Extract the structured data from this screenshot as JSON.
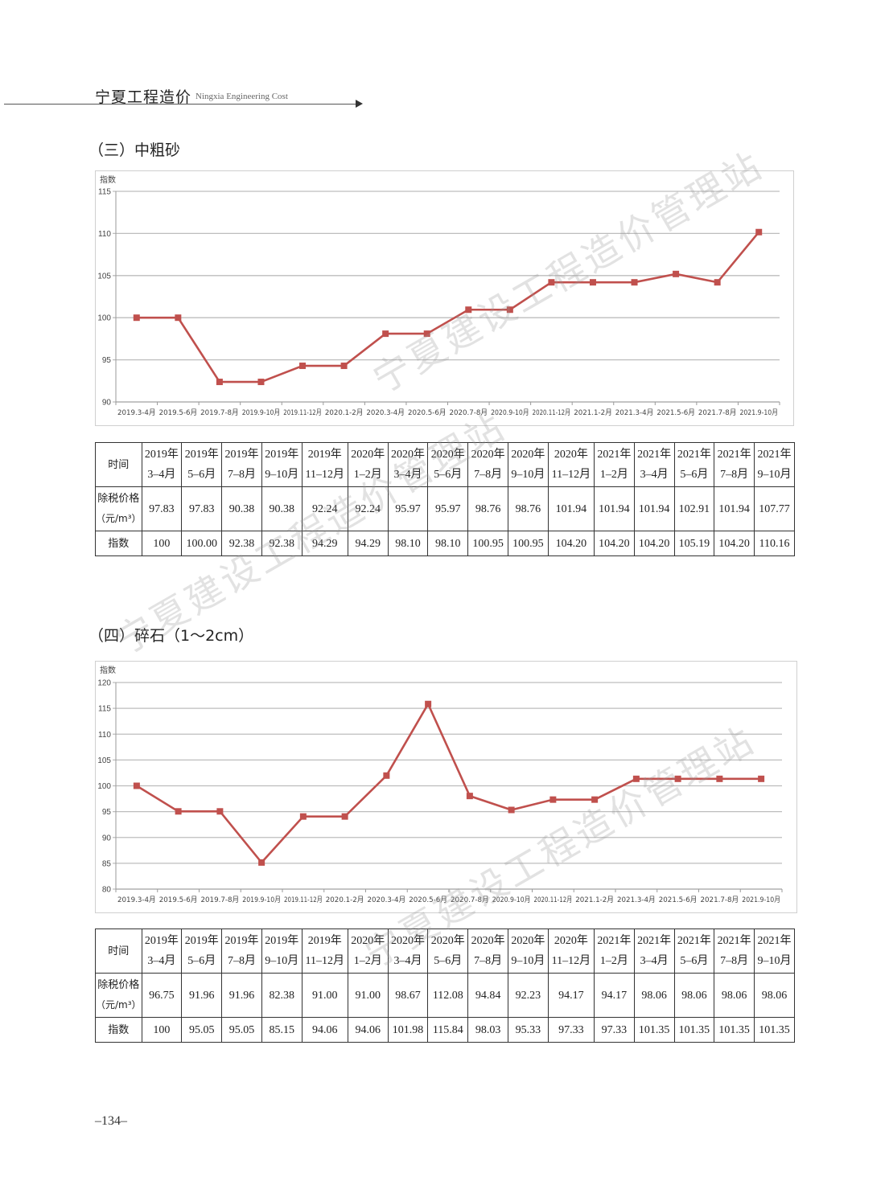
{
  "header": {
    "title_cn": "宁夏工程造价",
    "title_en": "Ningxia Engineering Cost"
  },
  "sections": [
    {
      "title": "（三）中粗砂",
      "chart_data": {
        "type": "line",
        "ylabel": "指数",
        "ylim": [
          90,
          115
        ],
        "yticks": [
          90,
          95,
          100,
          105,
          110,
          115
        ],
        "categories": [
          "2019.3-4月",
          "2019.5-6月",
          "2019.7-8月",
          "2019.9-10月",
          "2019.11-12月",
          "2020.1-2月",
          "2020.3-4月",
          "2020.5-6月",
          "2020.7-8月",
          "2020.9-10月",
          "2020.11-12月",
          "2021.1-2月",
          "2021.3-4月",
          "2021.5-6月",
          "2021.7-8月",
          "2021.9-10月"
        ],
        "values": [
          100,
          100.0,
          92.38,
          92.38,
          94.29,
          94.29,
          98.1,
          98.1,
          100.95,
          100.95,
          104.2,
          104.2,
          104.2,
          105.19,
          104.2,
          110.16
        ],
        "grid": true,
        "line_color": "#c0504d"
      },
      "table": {
        "head_time": "时间",
        "head_price": [
          "除税价格",
          "（元/m³）"
        ],
        "head_index": "指数",
        "periods": [
          [
            "2019年",
            "3–4月"
          ],
          [
            "2019年",
            "5–6月"
          ],
          [
            "2019年",
            "7–8月"
          ],
          [
            "2019年",
            "9–10月"
          ],
          [
            "2019年",
            "11–12月"
          ],
          [
            "2020年",
            "1–2月"
          ],
          [
            "2020年",
            "3–4月"
          ],
          [
            "2020年",
            "5–6月"
          ],
          [
            "2020年",
            "7–8月"
          ],
          [
            "2020年",
            "9–10月"
          ],
          [
            "2020年",
            "11–12月"
          ],
          [
            "2021年",
            "1–2月"
          ],
          [
            "2021年",
            "3–4月"
          ],
          [
            "2021年",
            "5–6月"
          ],
          [
            "2021年",
            "7–8月"
          ],
          [
            "2021年",
            "9–10月"
          ]
        ],
        "prices": [
          "97.83",
          "97.83",
          "90.38",
          "90.38",
          "92.24",
          "92.24",
          "95.97",
          "95.97",
          "98.76",
          "98.76",
          "101.94",
          "101.94",
          "101.94",
          "102.91",
          "101.94",
          "107.77"
        ],
        "indices": [
          "100",
          "100.00",
          "92.38",
          "92.38",
          "94.29",
          "94.29",
          "98.10",
          "98.10",
          "100.95",
          "100.95",
          "104.20",
          "104.20",
          "104.20",
          "105.19",
          "104.20",
          "110.16"
        ]
      }
    },
    {
      "title": "（四）碎石（1～2cm）",
      "chart_data": {
        "type": "line",
        "ylabel": "指数",
        "ylim": [
          80,
          120
        ],
        "yticks": [
          80,
          85,
          90,
          95,
          100,
          105,
          110,
          115,
          120
        ],
        "categories": [
          "2019.3-4月",
          "2019.5-6月",
          "2019.7-8月",
          "2019.9-10月",
          "2019.11-12月",
          "2020.1-2月",
          "2020.3-4月",
          "2020.5-6月",
          "2020.7-8月",
          "2020.9-10月",
          "2020.11-12月",
          "2021.1-2月",
          "2021.3-4月",
          "2021.5-6月",
          "2021.7-8月",
          "2021.9-10月"
        ],
        "values": [
          100,
          95.05,
          95.05,
          85.15,
          94.06,
          94.06,
          101.98,
          115.84,
          98.03,
          95.33,
          97.33,
          97.33,
          101.35,
          101.35,
          101.35,
          101.35
        ],
        "grid": true,
        "line_color": "#c0504d"
      },
      "table": {
        "head_time": "时间",
        "head_price": [
          "除税价格",
          "（元/m³）"
        ],
        "head_index": "指数",
        "periods": [
          [
            "2019年",
            "3–4月"
          ],
          [
            "2019年",
            "5–6月"
          ],
          [
            "2019年",
            "7–8月"
          ],
          [
            "2019年",
            "9–10月"
          ],
          [
            "2019年",
            "11–12月"
          ],
          [
            "2020年",
            "1–2月"
          ],
          [
            "2020年",
            "3–4月"
          ],
          [
            "2020年",
            "5–6月"
          ],
          [
            "2020年",
            "7–8月"
          ],
          [
            "2020年",
            "9–10月"
          ],
          [
            "2020年",
            "11–12月"
          ],
          [
            "2021年",
            "1–2月"
          ],
          [
            "2021年",
            "3–4月"
          ],
          [
            "2021年",
            "5–6月"
          ],
          [
            "2021年",
            "7–8月"
          ],
          [
            "2021年",
            "9–10月"
          ]
        ],
        "prices": [
          "96.75",
          "91.96",
          "91.96",
          "82.38",
          "91.00",
          "91.00",
          "98.67",
          "112.08",
          "94.84",
          "92.23",
          "94.17",
          "94.17",
          "98.06",
          "98.06",
          "98.06",
          "98.06"
        ],
        "indices": [
          "100",
          "95.05",
          "95.05",
          "85.15",
          "94.06",
          "94.06",
          "101.98",
          "115.84",
          "98.03",
          "95.33",
          "97.33",
          "97.33",
          "101.35",
          "101.35",
          "101.35",
          "101.35"
        ]
      }
    }
  ],
  "watermarks": [
    "宁夏建设工程造价管理站",
    "宁夏建设工程造价管理站",
    "宁夏建设工程造价管理站"
  ],
  "page_number": "–134–"
}
